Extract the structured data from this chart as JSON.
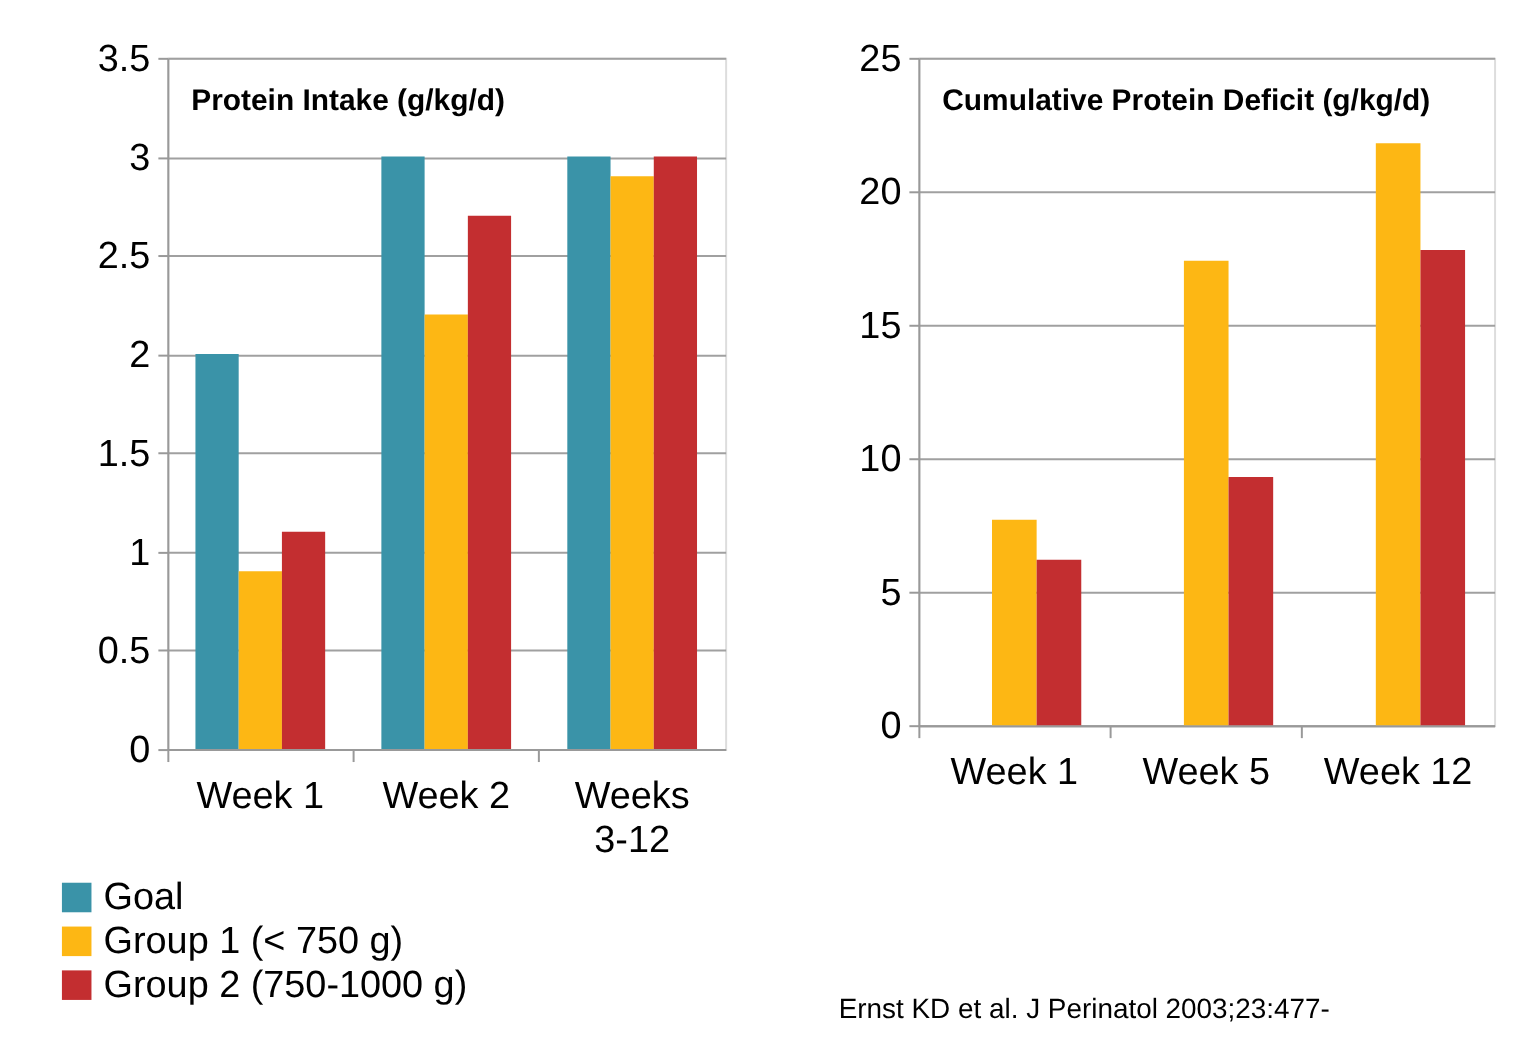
{
  "chart_data": [
    {
      "type": "bar",
      "title": "Protein Intake (g/kg/d)",
      "categories": [
        "Week 1",
        "Week 2",
        "Weeks 3-12"
      ],
      "series": [
        {
          "name": "Goal",
          "color": "#3a93a8",
          "values": [
            2,
            3,
            3
          ]
        },
        {
          "name": "Group 1 (< 750 g)",
          "color": "#fdb714",
          "values": [
            0.9,
            2.2,
            2.9
          ]
        },
        {
          "name": "Group 2 (750-1000 g)",
          "color": "#c32e30",
          "values": [
            1.1,
            2.7,
            3.0
          ]
        }
      ],
      "ylim": [
        0,
        3.5
      ],
      "yticks": [
        0,
        0.5,
        1,
        1.5,
        2,
        2.5,
        3,
        3.5
      ],
      "grid": "y",
      "legend": "bottom"
    },
    {
      "type": "bar",
      "title": "Cumulative Protein Deficit (g/kg/d)",
      "categories": [
        "Week 1",
        "Week 5",
        "Week 12"
      ],
      "series": [
        {
          "color": "#3a93a8",
          "values": [
            null,
            null,
            null
          ]
        },
        {
          "color": "#fdb714",
          "values": [
            7.7,
            17.4,
            21.8
          ]
        },
        {
          "color": "#c32e30",
          "values": [
            6.2,
            9.3,
            17.8
          ]
        }
      ],
      "ylim": [
        0,
        25
      ],
      "yticks": [
        0,
        5,
        10,
        15,
        20,
        25
      ],
      "grid": "y",
      "annotations": [
        "Ernst KD et al. J Perinatol 2003;23:477-"
      ]
    }
  ]
}
